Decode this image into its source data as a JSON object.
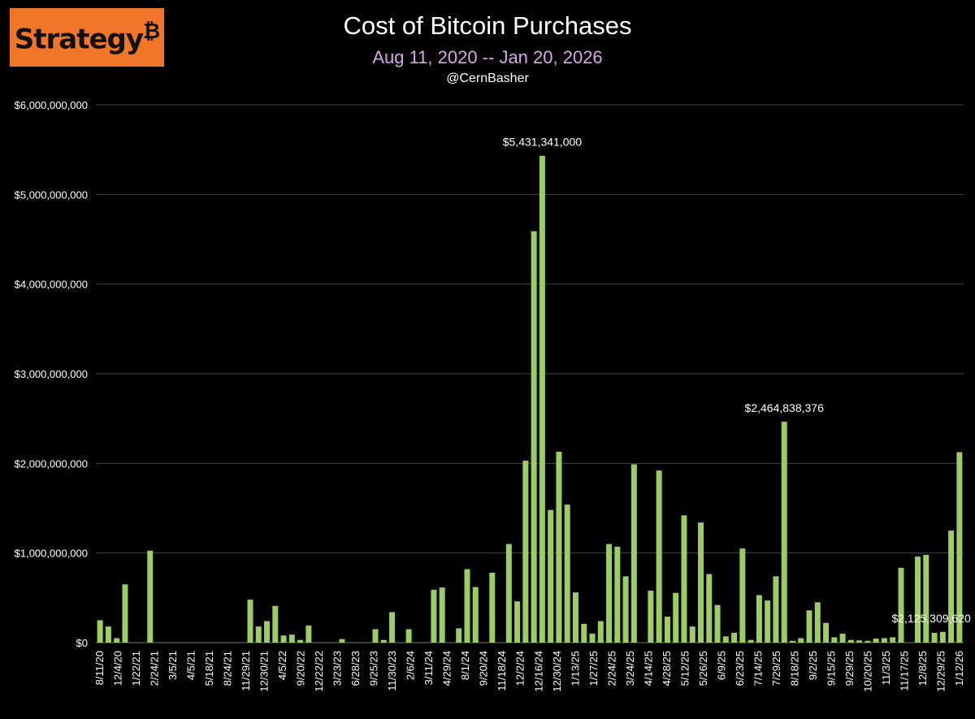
{
  "logo": {
    "text": "Strategy",
    "mark": "₿"
  },
  "chart_data": {
    "type": "bar",
    "title": "Cost of Bitcoin Purchases",
    "subtitle": "Aug 11, 2020 -- Jan 20, 2026",
    "credit": "@CernBasher",
    "ylim": [
      0,
      6000000000
    ],
    "yticks": [
      "$0",
      "$1,000,000,000",
      "$2,000,000,000",
      "$3,000,000,000",
      "$4,000,000,000",
      "$5,000,000,000",
      "$6,000,000,000"
    ],
    "grid": true,
    "bar_color": "#9ccc65",
    "background": "#000000",
    "x_tick_labels": [
      "8/11/20",
      "12/4/20",
      "1/22/21",
      "2/24/21",
      "3/5/21",
      "4/5/21",
      "5/18/21",
      "8/24/21",
      "11/29/21",
      "12/30/21",
      "4/5/22",
      "9/20/22",
      "12/22/22",
      "3/23/23",
      "6/28/23",
      "9/25/23",
      "11/30/23",
      "2/6/24",
      "3/11/24",
      "4/29/24",
      "8/1/24",
      "9/20/24",
      "11/18/24",
      "12/2/24",
      "12/16/24",
      "12/30/24",
      "1/13/25",
      "1/27/25",
      "2/24/25",
      "3/24/25",
      "4/14/25",
      "4/28/25",
      "5/12/25",
      "5/26/25",
      "6/9/25",
      "6/23/25",
      "7/14/25",
      "7/29/25",
      "8/18/25",
      "9/2/25",
      "9/15/25",
      "9/29/25",
      "10/20/25",
      "11/3/25",
      "11/17/25",
      "12/8/25",
      "12/29/25",
      "1/12/26"
    ],
    "values": [
      250000000,
      180000000,
      50000000,
      650000000,
      0,
      0,
      1026000000,
      0,
      0,
      0,
      0,
      0,
      0,
      0,
      0,
      0,
      0,
      0,
      480000000,
      180000000,
      240000000,
      410000000,
      80000000,
      90000000,
      30000000,
      190000000,
      0,
      0,
      0,
      40000000,
      0,
      0,
      0,
      150000000,
      30000000,
      340000000,
      0,
      150000000,
      0,
      0,
      590000000,
      615000000,
      0,
      160000000,
      820000000,
      620000000,
      0,
      780000000,
      0,
      1100000000,
      460000000,
      2030000000,
      4590000000,
      5431341000,
      1480000000,
      2130000000,
      1540000000,
      560000000,
      210000000,
      100000000,
      240000000,
      1100000000,
      1070000000,
      740000000,
      1990000000,
      0,
      580000000,
      1920000000,
      290000000,
      555000000,
      1420000000,
      180000000,
      1340000000,
      765000000,
      420000000,
      70000000,
      110000000,
      1050000000,
      30000000,
      530000000,
      470000000,
      740000000,
      2464838376,
      20000000,
      50000000,
      360000000,
      450000000,
      220000000,
      60000000,
      100000000,
      30000000,
      25000000,
      20000000,
      45000000,
      50000000,
      60000000,
      835000000,
      0,
      960000000,
      980000000,
      110000000,
      120000000,
      1250000000,
      2125309620
    ],
    "annotations": [
      {
        "text": "$5,431,341,000",
        "bar_index": 53
      },
      {
        "text": "$2,464,838,376",
        "bar_index": 82
      },
      {
        "text": "$2,125,309,620",
        "bar_index": 101
      }
    ]
  }
}
